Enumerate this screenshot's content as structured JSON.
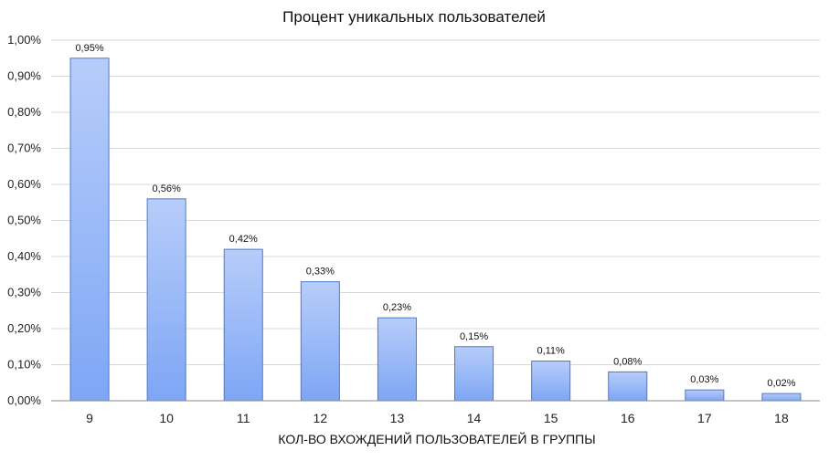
{
  "chart_data": {
    "type": "bar",
    "title": "Процент уникальных пользователей",
    "xlabel": "КОЛ-ВО ВХОЖДЕНИЙ ПОЛЬЗОВАТЕЛЕЙ В ГРУППЫ",
    "ylabel": "",
    "categories": [
      "9",
      "10",
      "11",
      "12",
      "13",
      "14",
      "15",
      "16",
      "17",
      "18"
    ],
    "values": [
      0.95,
      0.56,
      0.42,
      0.33,
      0.23,
      0.15,
      0.11,
      0.08,
      0.03,
      0.02
    ],
    "data_labels": [
      "0,95%",
      "0,56%",
      "0,42%",
      "0,33%",
      "0,23%",
      "0,15%",
      "0,11%",
      "0,08%",
      "0,03%",
      "0,02%"
    ],
    "ylim": [
      0,
      1.0
    ],
    "yticks": [
      0.0,
      0.1,
      0.2,
      0.3,
      0.4,
      0.5,
      0.6,
      0.7,
      0.8,
      0.9,
      1.0
    ],
    "ytick_labels": [
      "0,00%",
      "0,10%",
      "0,20%",
      "0,30%",
      "0,40%",
      "0,50%",
      "0,60%",
      "0,70%",
      "0,80%",
      "0,90%",
      "1,00%"
    ],
    "grid": true,
    "legend": "none",
    "colors": {
      "bar_top": "#b7cdfa",
      "bar_bottom": "#7ea6f5",
      "bar_stroke": "#4a78d6",
      "grid": "#d9d9d9",
      "axis": "#888888"
    }
  }
}
